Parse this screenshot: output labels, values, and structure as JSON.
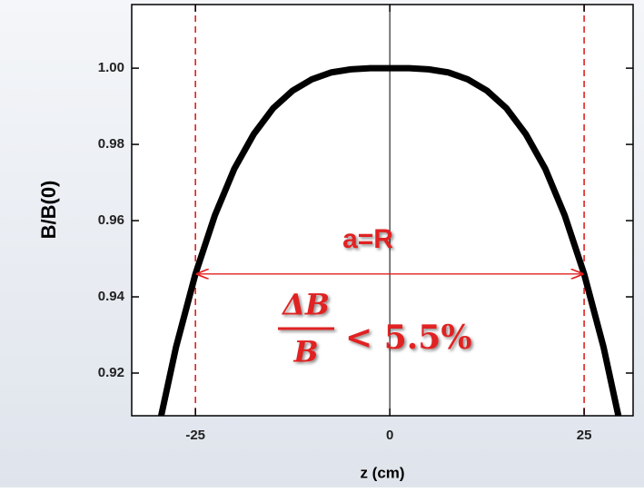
{
  "chart_data": {
    "type": "line",
    "x_label": "z (cm)",
    "y_label": "B/B(0)",
    "x": [
      -30,
      -27.5,
      -25,
      -22.5,
      -20,
      -17.5,
      -15,
      -12.5,
      -10,
      -7.5,
      -5,
      -2.5,
      0,
      2.5,
      5,
      7.5,
      10,
      12.5,
      15,
      17.5,
      20,
      22.5,
      25,
      27.5,
      30
    ],
    "series": [
      {
        "color": "#000000",
        "values": [
          0.9032,
          0.9268,
          0.946,
          0.9614,
          0.9736,
          0.9827,
          0.9895,
          0.9941,
          0.9971,
          0.9989,
          0.9997,
          1.0,
          1.0,
          1.0,
          0.9997,
          0.9989,
          0.9971,
          0.9941,
          0.9895,
          0.9827,
          0.9736,
          0.9614,
          0.946,
          0.9268,
          0.9032
        ]
      }
    ],
    "xlim": [
      -33.2,
      31.3
    ],
    "ylim": [
      0.9088,
      1.0167
    ],
    "xticks": [
      -25,
      0,
      25
    ],
    "yticks": [
      {
        "value": 0.92,
        "label": "0.92"
      },
      {
        "value": 0.94,
        "label": "0.94"
      },
      {
        "value": 0.96,
        "label": "0.96"
      },
      {
        "value": 0.98,
        "label": "0.98"
      },
      {
        "value": 1.0,
        "label": "1.00"
      }
    ],
    "vlines": [
      {
        "x": -25,
        "color": "#e02020"
      },
      {
        "x": 0,
        "color": "#000000"
      },
      {
        "x": 25,
        "color": "#e02020"
      }
    ],
    "arrow": {
      "y": 0.946,
      "x": [
        -25,
        25
      ],
      "color": "#e02020"
    },
    "annotations": {
      "span": "a=R",
      "numerator": "ΔB",
      "denominator": "B",
      "relation": "< 5.5%"
    }
  }
}
